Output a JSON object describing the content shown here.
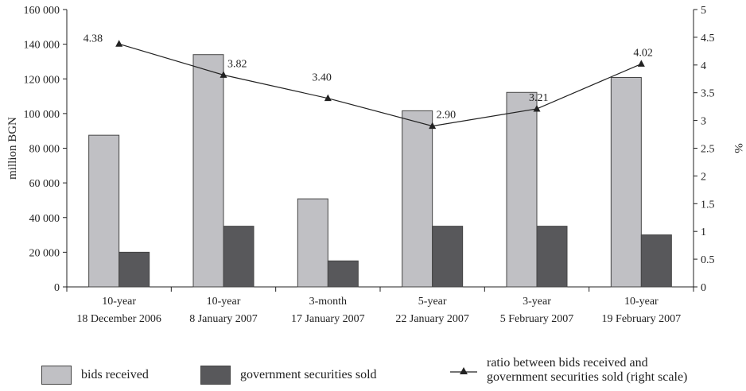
{
  "chart_data": {
    "type": "bar",
    "categories": [
      [
        "10-year",
        "18 December 2006"
      ],
      [
        "10-year",
        "8 January 2007"
      ],
      [
        "3-month",
        "17 January 2007"
      ],
      [
        "5-year",
        "22 January 2007"
      ],
      [
        "3-year",
        "5 February 2007"
      ],
      [
        "10-year",
        "19 February 2007"
      ]
    ],
    "series": [
      {
        "name": "bids received",
        "type": "bar",
        "axis": "left",
        "color": "#c0c0c4",
        "values": [
          87500,
          134000,
          50800,
          101600,
          112200,
          120800
        ]
      },
      {
        "name": "government securities sold",
        "type": "bar",
        "axis": "left",
        "color": "#58585b",
        "values": [
          20000,
          35000,
          15000,
          35000,
          35000,
          30000
        ]
      },
      {
        "name": "ratio between bids received and government securities sold (right scale)",
        "type": "line",
        "axis": "right",
        "color": "#222222",
        "marker": "triangle",
        "values": [
          4.38,
          3.82,
          3.4,
          2.9,
          3.21,
          4.02
        ],
        "labels": [
          "4.38",
          "3.82",
          "3.40",
          "2.90",
          "3.21",
          "4.02"
        ]
      }
    ],
    "ylabel": "million BGN",
    "y2label": "%",
    "ylim": [
      0,
      160000
    ],
    "y2lim": [
      0,
      5
    ],
    "yticks": [
      "0",
      "20 000",
      "40 000",
      "60 000",
      "80 000",
      "100 000",
      "120 000",
      "140 000",
      "160 000"
    ],
    "y2ticks": [
      "0",
      "0.5",
      "1",
      "1.5",
      "2",
      "2.5",
      "3",
      "3.5",
      "4",
      "4.5",
      "5"
    ],
    "grid": false,
    "legend_position": "bottom"
  },
  "legend": {
    "bids": "bids received",
    "sold": "government securities sold",
    "ratio_line1": "ratio between bids received and",
    "ratio_line2": "government securities sold (right scale)"
  }
}
